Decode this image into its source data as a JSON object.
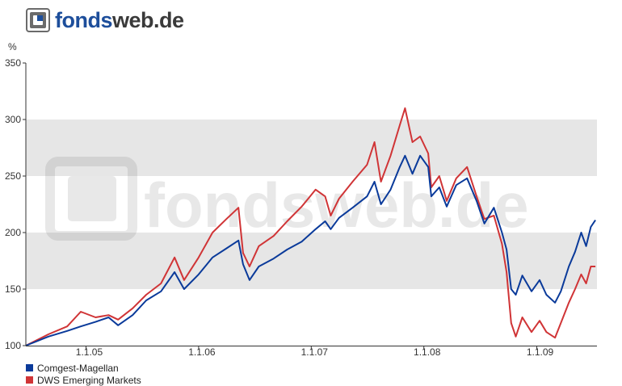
{
  "brand": {
    "part1": "fonds",
    "part2": "web.de",
    "watermark_text": "fondsweb.de"
  },
  "colors": {
    "brand_blue": "#1d4e9b",
    "series_blue": "#0a3a9a",
    "series_red": "#d03436",
    "band": "#e6e6e6"
  },
  "chart_data": {
    "type": "line",
    "ylabel": "%",
    "ylim": [
      100,
      350
    ],
    "yticks": [
      100,
      150,
      200,
      250,
      300,
      350
    ],
    "x_range": [
      "2004-06-20",
      "2009-07-15"
    ],
    "xtick_labels": [
      "1.1.05",
      "1.1.06",
      "1.1.07",
      "1.1.08",
      "1.1.09"
    ],
    "xtick_dates": [
      "2005-01-01",
      "2006-01-01",
      "2007-01-01",
      "2008-01-01",
      "2009-01-01"
    ],
    "grid": "alternating horizontal bands",
    "legend_position": "bottom-left",
    "series": [
      {
        "name": "Comgest-Magellan",
        "color": "#0a3a9a",
        "points": [
          [
            "2004-06-20",
            100
          ],
          [
            "2004-09-01",
            108
          ],
          [
            "2004-11-01",
            113
          ],
          [
            "2004-12-15",
            117
          ],
          [
            "2005-02-01",
            121
          ],
          [
            "2005-03-15",
            125
          ],
          [
            "2005-04-15",
            118
          ],
          [
            "2005-06-01",
            127
          ],
          [
            "2005-07-15",
            140
          ],
          [
            "2005-09-01",
            148
          ],
          [
            "2005-10-15",
            165
          ],
          [
            "2005-11-15",
            150
          ],
          [
            "2006-01-01",
            163
          ],
          [
            "2006-02-15",
            178
          ],
          [
            "2006-04-01",
            186
          ],
          [
            "2006-05-10",
            193
          ],
          [
            "2006-05-25",
            172
          ],
          [
            "2006-06-15",
            158
          ],
          [
            "2006-07-15",
            170
          ],
          [
            "2006-09-01",
            177
          ],
          [
            "2006-10-15",
            185
          ],
          [
            "2006-12-01",
            192
          ],
          [
            "2007-01-15",
            203
          ],
          [
            "2007-02-15",
            210
          ],
          [
            "2007-03-05",
            203
          ],
          [
            "2007-04-01",
            213
          ],
          [
            "2007-05-15",
            222
          ],
          [
            "2007-07-01",
            232
          ],
          [
            "2007-07-25",
            245
          ],
          [
            "2007-08-15",
            225
          ],
          [
            "2007-09-15",
            238
          ],
          [
            "2007-10-15",
            258
          ],
          [
            "2007-11-01",
            268
          ],
          [
            "2007-11-25",
            252
          ],
          [
            "2007-12-20",
            268
          ],
          [
            "2008-01-15",
            258
          ],
          [
            "2008-01-25",
            232
          ],
          [
            "2008-02-20",
            240
          ],
          [
            "2008-03-15",
            223
          ],
          [
            "2008-04-15",
            242
          ],
          [
            "2008-05-20",
            248
          ],
          [
            "2008-06-20",
            228
          ],
          [
            "2008-07-15",
            208
          ],
          [
            "2008-08-15",
            222
          ],
          [
            "2008-09-10",
            200
          ],
          [
            "2008-09-25",
            185
          ],
          [
            "2008-10-10",
            150
          ],
          [
            "2008-10-25",
            145
          ],
          [
            "2008-11-15",
            162
          ],
          [
            "2008-12-15",
            148
          ],
          [
            "2009-01-10",
            158
          ],
          [
            "2009-02-01",
            145
          ],
          [
            "2009-03-01",
            138
          ],
          [
            "2009-03-20",
            148
          ],
          [
            "2009-04-15",
            170
          ],
          [
            "2009-05-05",
            183
          ],
          [
            "2009-05-25",
            200
          ],
          [
            "2009-06-10",
            188
          ],
          [
            "2009-06-25",
            205
          ],
          [
            "2009-07-10",
            211
          ]
        ]
      },
      {
        "name": "DWS Emerging Markets",
        "color": "#d03436",
        "points": [
          [
            "2004-06-20",
            100
          ],
          [
            "2004-09-01",
            110
          ],
          [
            "2004-11-01",
            117
          ],
          [
            "2004-12-15",
            130
          ],
          [
            "2005-02-01",
            125
          ],
          [
            "2005-03-15",
            127
          ],
          [
            "2005-04-15",
            123
          ],
          [
            "2005-06-01",
            133
          ],
          [
            "2005-07-15",
            145
          ],
          [
            "2005-09-01",
            155
          ],
          [
            "2005-10-15",
            178
          ],
          [
            "2005-11-15",
            158
          ],
          [
            "2006-01-01",
            178
          ],
          [
            "2006-02-15",
            200
          ],
          [
            "2006-04-01",
            212
          ],
          [
            "2006-05-10",
            222
          ],
          [
            "2006-05-25",
            182
          ],
          [
            "2006-06-15",
            170
          ],
          [
            "2006-07-15",
            188
          ],
          [
            "2006-09-01",
            197
          ],
          [
            "2006-10-15",
            210
          ],
          [
            "2006-12-01",
            223
          ],
          [
            "2007-01-15",
            238
          ],
          [
            "2007-02-15",
            232
          ],
          [
            "2007-03-05",
            215
          ],
          [
            "2007-04-01",
            230
          ],
          [
            "2007-05-15",
            245
          ],
          [
            "2007-07-01",
            260
          ],
          [
            "2007-07-25",
            280
          ],
          [
            "2007-08-15",
            245
          ],
          [
            "2007-09-15",
            268
          ],
          [
            "2007-10-15",
            295
          ],
          [
            "2007-11-01",
            310
          ],
          [
            "2007-11-25",
            280
          ],
          [
            "2007-12-20",
            285
          ],
          [
            "2008-01-15",
            270
          ],
          [
            "2008-01-25",
            240
          ],
          [
            "2008-02-20",
            250
          ],
          [
            "2008-03-15",
            228
          ],
          [
            "2008-04-15",
            248
          ],
          [
            "2008-05-20",
            258
          ],
          [
            "2008-06-20",
            232
          ],
          [
            "2008-07-15",
            212
          ],
          [
            "2008-08-15",
            215
          ],
          [
            "2008-09-10",
            190
          ],
          [
            "2008-09-25",
            165
          ],
          [
            "2008-10-10",
            120
          ],
          [
            "2008-10-25",
            108
          ],
          [
            "2008-11-15",
            125
          ],
          [
            "2008-12-15",
            112
          ],
          [
            "2009-01-10",
            122
          ],
          [
            "2009-02-01",
            112
          ],
          [
            "2009-03-01",
            107
          ],
          [
            "2009-03-20",
            120
          ],
          [
            "2009-04-15",
            138
          ],
          [
            "2009-05-05",
            150
          ],
          [
            "2009-05-25",
            163
          ],
          [
            "2009-06-10",
            155
          ],
          [
            "2009-06-25",
            170
          ],
          [
            "2009-07-10",
            170
          ]
        ]
      }
    ]
  }
}
